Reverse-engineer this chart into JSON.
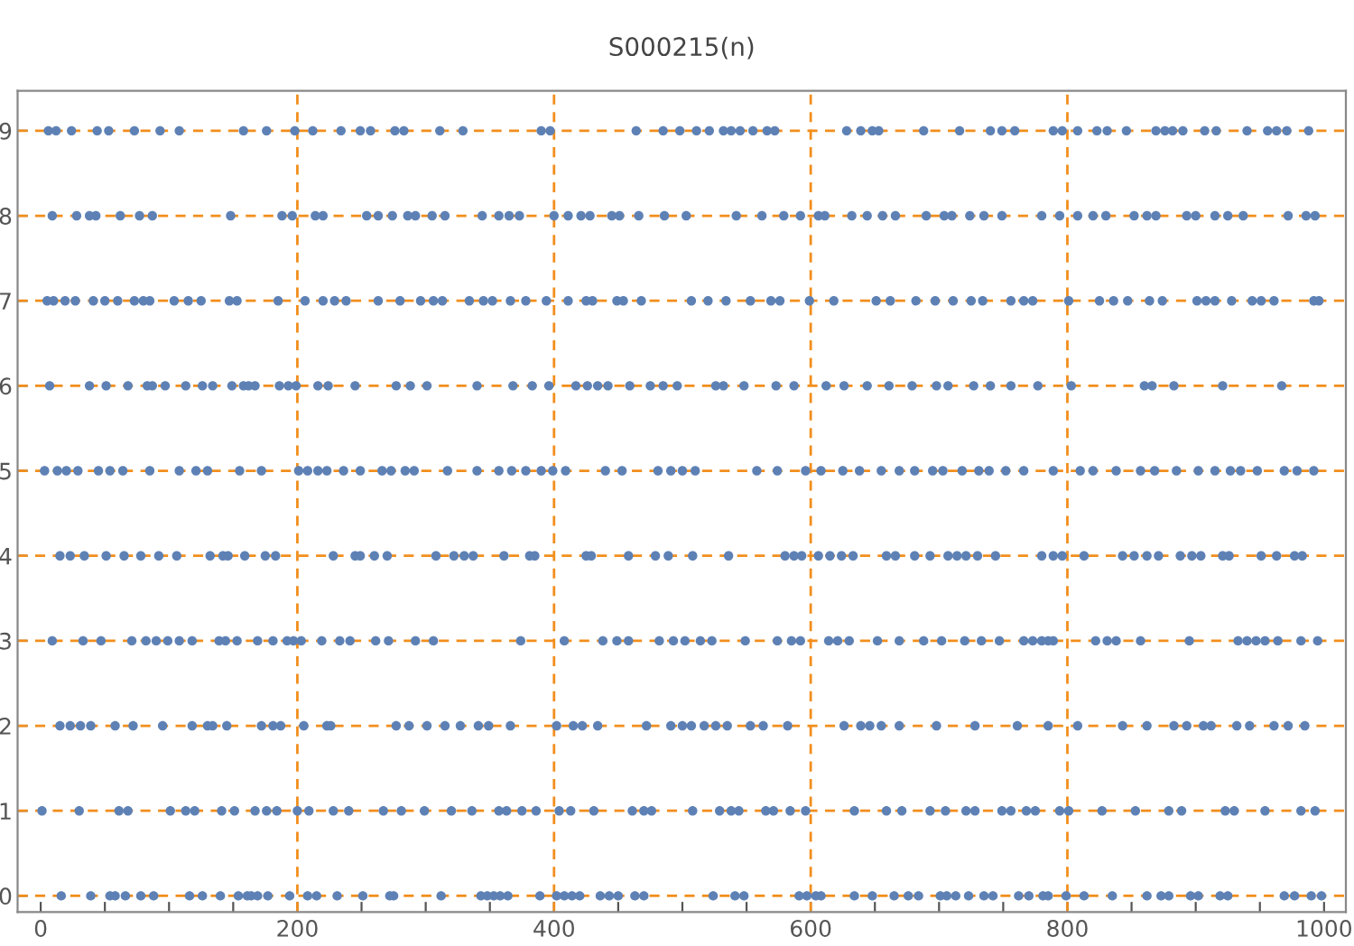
{
  "chart_data": {
    "type": "scatter",
    "title": "S000215(n)",
    "marker": "circle",
    "xlim": [
      -18,
      1017
    ],
    "ylim": [
      -0.19,
      9.47
    ],
    "xticks": [
      0,
      {
        "value": 50,
        "label": null
      },
      {
        "value": 100,
        "label": null
      },
      {
        "value": 150,
        "label": null
      },
      200,
      {
        "value": 250,
        "label": null
      },
      {
        "value": 300,
        "label": null
      },
      {
        "value": 350,
        "label": null
      },
      400,
      {
        "value": 450,
        "label": null
      },
      {
        "value": 500,
        "label": null
      },
      {
        "value": 550,
        "label": null
      },
      600,
      {
        "value": 650,
        "label": null
      },
      {
        "value": 700,
        "label": null
      },
      {
        "value": 750,
        "label": null
      },
      800,
      {
        "value": 850,
        "label": null
      },
      {
        "value": 900,
        "label": null
      },
      {
        "value": 950,
        "label": null
      },
      1000
    ],
    "yticks": [
      0,
      1,
      2,
      3,
      4,
      5,
      6,
      7,
      8,
      9
    ],
    "ref_lines": [
      {
        "axis": "y",
        "value": 0,
        "color": "#f28e1c",
        "line_style": "dashed"
      },
      {
        "axis": "y",
        "value": 1,
        "color": "#f28e1c",
        "line_style": "dashed"
      },
      {
        "axis": "y",
        "value": 2,
        "color": "#f28e1c",
        "line_style": "dashed"
      },
      {
        "axis": "y",
        "value": 3,
        "color": "#f28e1c",
        "line_style": "dashed"
      },
      {
        "axis": "y",
        "value": 4,
        "color": "#f28e1c",
        "line_style": "dashed"
      },
      {
        "axis": "y",
        "value": 5,
        "color": "#f28e1c",
        "line_style": "dashed"
      },
      {
        "axis": "y",
        "value": 6,
        "color": "#f28e1c",
        "line_style": "dashed"
      },
      {
        "axis": "y",
        "value": 7,
        "color": "#f28e1c",
        "line_style": "dashed"
      },
      {
        "axis": "y",
        "value": 8,
        "color": "#f28e1c",
        "line_style": "dashed"
      },
      {
        "axis": "y",
        "value": 9,
        "color": "#f28e1c",
        "line_style": "dashed"
      },
      {
        "axis": "x",
        "value": 200,
        "color": "#f28e1c",
        "line_style": "dashed"
      },
      {
        "axis": "x",
        "value": 400,
        "color": "#f28e1c",
        "line_style": "dashed"
      },
      {
        "axis": "x",
        "value": 600,
        "color": "#f28e1c",
        "line_style": "dashed"
      },
      {
        "axis": "x",
        "value": 800,
        "color": "#f28e1c",
        "line_style": "dashed"
      }
    ],
    "series": [
      {
        "color": "#5e81b5",
        "x": [
          16,
          39,
          54,
          58,
          66,
          78,
          88,
          116,
          126,
          140,
          154,
          161,
          164,
          169,
          177,
          194,
          208,
          215,
          231,
          251,
          272,
          275,
          312,
          343,
          348,
          353,
          358,
          364,
          389,
          402,
          408,
          414,
          420,
          436,
          443,
          450,
          463,
          470,
          524,
          541,
          548,
          591,
          597,
          604,
          608,
          634,
          648,
          665,
          676,
          684,
          701,
          706,
          713,
          723,
          735,
          742,
          762,
          770,
          781,
          785,
          799,
          813,
          835,
          862,
          873,
          879,
          896,
          902,
          919,
          925,
          969,
          977,
          990,
          998
        ],
        "values": [
          0,
          0,
          0,
          0,
          0,
          0,
          0,
          0,
          0,
          0,
          0,
          0,
          0,
          0,
          0,
          0,
          0,
          0,
          0,
          0,
          0,
          0,
          0,
          0,
          0,
          0,
          0,
          0,
          0,
          0,
          0,
          0,
          0,
          0,
          0,
          0,
          0,
          0,
          0,
          0,
          0,
          0,
          0,
          0,
          0,
          0,
          0,
          0,
          0,
          0,
          0,
          0,
          0,
          0,
          0,
          0,
          0,
          0,
          0,
          0,
          0,
          0,
          0,
          0,
          0,
          0,
          0,
          0,
          0,
          0,
          0,
          0,
          0,
          0
        ]
      },
      {
        "color": "#5e81b5",
        "x": [
          1,
          30,
          61,
          68,
          101,
          113,
          120,
          141,
          151,
          167,
          176,
          184,
          200,
          209,
          228,
          240,
          267,
          281,
          299,
          320,
          336,
          357,
          363,
          375,
          386,
          404,
          413,
          431,
          461,
          470,
          476,
          508,
          529,
          538,
          544,
          565,
          571,
          584,
          596,
          634,
          659,
          671,
          693,
          705,
          721,
          728,
          749,
          756,
          768,
          775,
          794,
          801,
          827,
          853,
          879,
          889,
          923,
          930,
          954,
          982,
          993
        ],
        "values": [
          1,
          1,
          1,
          1,
          1,
          1,
          1,
          1,
          1,
          1,
          1,
          1,
          1,
          1,
          1,
          1,
          1,
          1,
          1,
          1,
          1,
          1,
          1,
          1,
          1,
          1,
          1,
          1,
          1,
          1,
          1,
          1,
          1,
          1,
          1,
          1,
          1,
          1,
          1,
          1,
          1,
          1,
          1,
          1,
          1,
          1,
          1,
          1,
          1,
          1,
          1,
          1,
          1,
          1,
          1,
          1,
          1,
          1,
          1,
          1,
          1
        ]
      },
      {
        "color": "#5e81b5",
        "x": [
          15,
          23,
          31,
          39,
          58,
          72,
          95,
          118,
          130,
          134,
          145,
          172,
          181,
          187,
          205,
          223,
          226,
          277,
          287,
          301,
          315,
          327,
          341,
          349,
          366,
          402,
          415,
          422,
          434,
          472,
          491,
          500,
          507,
          517,
          526,
          535,
          553,
          563,
          582,
          626,
          639,
          646,
          655,
          669,
          698,
          728,
          761,
          785,
          808,
          843,
          862,
          883,
          893,
          906,
          912,
          932,
          942,
          961,
          972,
          985
        ],
        "values": [
          2,
          2,
          2,
          2,
          2,
          2,
          2,
          2,
          2,
          2,
          2,
          2,
          2,
          2,
          2,
          2,
          2,
          2,
          2,
          2,
          2,
          2,
          2,
          2,
          2,
          2,
          2,
          2,
          2,
          2,
          2,
          2,
          2,
          2,
          2,
          2,
          2,
          2,
          2,
          2,
          2,
          2,
          2,
          2,
          2,
          2,
          2,
          2,
          2,
          2,
          2,
          2,
          2,
          2,
          2,
          2,
          2,
          2,
          2,
          2
        ]
      },
      {
        "color": "#5e81b5",
        "x": [
          9,
          33,
          47,
          71,
          82,
          90,
          99,
          108,
          118,
          139,
          144,
          153,
          169,
          181,
          192,
          197,
          203,
          219,
          233,
          241,
          261,
          271,
          292,
          306,
          374,
          408,
          438,
          449,
          458,
          482,
          493,
          502,
          514,
          523,
          549,
          574,
          585,
          592,
          614,
          621,
          630,
          652,
          669,
          688,
          702,
          720,
          733,
          747,
          766,
          773,
          780,
          785,
          789,
          822,
          831,
          838,
          857,
          895,
          933,
          940,
          947,
          954,
          964,
          982,
          995
        ],
        "values": [
          3,
          3,
          3,
          3,
          3,
          3,
          3,
          3,
          3,
          3,
          3,
          3,
          3,
          3,
          3,
          3,
          3,
          3,
          3,
          3,
          3,
          3,
          3,
          3,
          3,
          3,
          3,
          3,
          3,
          3,
          3,
          3,
          3,
          3,
          3,
          3,
          3,
          3,
          3,
          3,
          3,
          3,
          3,
          3,
          3,
          3,
          3,
          3,
          3,
          3,
          3,
          3,
          3,
          3,
          3,
          3,
          3,
          3,
          3,
          3,
          3,
          3,
          3,
          3,
          3
        ]
      },
      {
        "color": "#5e81b5",
        "x": [
          15,
          23,
          34,
          51,
          65,
          78,
          92,
          106,
          132,
          142,
          146,
          159,
          175,
          183,
          228,
          245,
          249,
          260,
          270,
          308,
          322,
          330,
          337,
          361,
          381,
          385,
          425,
          429,
          458,
          479,
          489,
          508,
          536,
          580,
          587,
          593,
          606,
          615,
          624,
          633,
          659,
          666,
          681,
          693,
          707,
          714,
          721,
          730,
          744,
          780,
          789,
          796,
          813,
          843,
          852,
          862,
          871,
          888,
          897,
          904,
          921,
          926,
          951,
          963,
          977,
          983
        ],
        "values": [
          4,
          4,
          4,
          4,
          4,
          4,
          4,
          4,
          4,
          4,
          4,
          4,
          4,
          4,
          4,
          4,
          4,
          4,
          4,
          4,
          4,
          4,
          4,
          4,
          4,
          4,
          4,
          4,
          4,
          4,
          4,
          4,
          4,
          4,
          4,
          4,
          4,
          4,
          4,
          4,
          4,
          4,
          4,
          4,
          4,
          4,
          4,
          4,
          4,
          4,
          4,
          4,
          4,
          4,
          4,
          4,
          4,
          4,
          4,
          4,
          4,
          4,
          4,
          4,
          4,
          4
        ]
      },
      {
        "color": "#5e81b5",
        "x": [
          3,
          13,
          20,
          29,
          45,
          54,
          64,
          85,
          108,
          121,
          130,
          155,
          172,
          201,
          208,
          216,
          223,
          236,
          249,
          266,
          273,
          284,
          291,
          317,
          340,
          357,
          367,
          378,
          390,
          399,
          409,
          440,
          453,
          481,
          491,
          500,
          510,
          558,
          574,
          596,
          608,
          625,
          638,
          655,
          669,
          681,
          695,
          703,
          718,
          731,
          739,
          752,
          766,
          789,
          810,
          820,
          838,
          857,
          868,
          885,
          902,
          915,
          927,
          935,
          948,
          969,
          979,
          992
        ],
        "values": [
          5,
          5,
          5,
          5,
          5,
          5,
          5,
          5,
          5,
          5,
          5,
          5,
          5,
          5,
          5,
          5,
          5,
          5,
          5,
          5,
          5,
          5,
          5,
          5,
          5,
          5,
          5,
          5,
          5,
          5,
          5,
          5,
          5,
          5,
          5,
          5,
          5,
          5,
          5,
          5,
          5,
          5,
          5,
          5,
          5,
          5,
          5,
          5,
          5,
          5,
          5,
          5,
          5,
          5,
          5,
          5,
          5,
          5,
          5,
          5,
          5,
          5,
          5,
          5,
          5,
          5,
          5,
          5
        ]
      },
      {
        "color": "#5e81b5",
        "x": [
          7,
          38,
          51,
          68,
          83,
          87,
          97,
          113,
          126,
          134,
          149,
          158,
          162,
          167,
          186,
          193,
          199,
          216,
          224,
          245,
          277,
          288,
          301,
          340,
          368,
          383,
          396,
          417,
          426,
          434,
          442,
          459,
          475,
          485,
          496,
          526,
          532,
          548,
          573,
          587,
          612,
          626,
          644,
          661,
          679,
          698,
          707,
          727,
          740,
          756,
          777,
          803,
          860,
          866,
          883,
          921,
          967
        ],
        "values": [
          6,
          6,
          6,
          6,
          6,
          6,
          6,
          6,
          6,
          6,
          6,
          6,
          6,
          6,
          6,
          6,
          6,
          6,
          6,
          6,
          6,
          6,
          6,
          6,
          6,
          6,
          6,
          6,
          6,
          6,
          6,
          6,
          6,
          6,
          6,
          6,
          6,
          6,
          6,
          6,
          6,
          6,
          6,
          6,
          6,
          6,
          6,
          6,
          6,
          6,
          6,
          6,
          6,
          6,
          6,
          6,
          6
        ]
      },
      {
        "color": "#5e81b5",
        "x": [
          5,
          10,
          19,
          27,
          41,
          50,
          60,
          73,
          80,
          85,
          104,
          115,
          125,
          147,
          153,
          185,
          206,
          220,
          229,
          238,
          263,
          280,
          296,
          306,
          313,
          334,
          345,
          352,
          366,
          378,
          394,
          411,
          425,
          430,
          449,
          454,
          468,
          507,
          520,
          534,
          553,
          569,
          576,
          599,
          618,
          651,
          662,
          682,
          697,
          711,
          725,
          734,
          756,
          766,
          773,
          801,
          825,
          836,
          847,
          864,
          874,
          901,
          908,
          915,
          928,
          944,
          951,
          961,
          992,
          996
        ],
        "values": [
          7,
          7,
          7,
          7,
          7,
          7,
          7,
          7,
          7,
          7,
          7,
          7,
          7,
          7,
          7,
          7,
          7,
          7,
          7,
          7,
          7,
          7,
          7,
          7,
          7,
          7,
          7,
          7,
          7,
          7,
          7,
          7,
          7,
          7,
          7,
          7,
          7,
          7,
          7,
          7,
          7,
          7,
          7,
          7,
          7,
          7,
          7,
          7,
          7,
          7,
          7,
          7,
          7,
          7,
          7,
          7,
          7,
          7,
          7,
          7,
          7,
          7,
          7,
          7,
          7,
          7,
          7,
          7,
          7,
          7
        ]
      },
      {
        "color": "#5e81b5",
        "x": [
          9,
          28,
          38,
          43,
          62,
          77,
          87,
          148,
          188,
          196,
          214,
          220,
          254,
          263,
          274,
          286,
          292,
          305,
          315,
          344,
          357,
          365,
          373,
          400,
          411,
          421,
          428,
          445,
          451,
          466,
          486,
          503,
          542,
          562,
          579,
          592,
          606,
          611,
          632,
          644,
          656,
          666,
          690,
          704,
          710,
          724,
          735,
          749,
          780,
          794,
          808,
          820,
          830,
          852,
          862,
          869,
          893,
          900,
          915,
          925,
          937,
          972,
          986,
          993
        ],
        "values": [
          8,
          8,
          8,
          8,
          8,
          8,
          8,
          8,
          8,
          8,
          8,
          8,
          8,
          8,
          8,
          8,
          8,
          8,
          8,
          8,
          8,
          8,
          8,
          8,
          8,
          8,
          8,
          8,
          8,
          8,
          8,
          8,
          8,
          8,
          8,
          8,
          8,
          8,
          8,
          8,
          8,
          8,
          8,
          8,
          8,
          8,
          8,
          8,
          8,
          8,
          8,
          8,
          8,
          8,
          8,
          8,
          8,
          8,
          8,
          8,
          8,
          8,
          8,
          8
        ]
      },
      {
        "color": "#5e81b5",
        "x": [
          6,
          12,
          24,
          44,
          53,
          73,
          93,
          108,
          158,
          176,
          198,
          212,
          234,
          249,
          257,
          276,
          283,
          311,
          329,
          390,
          397,
          464,
          485,
          498,
          511,
          521,
          532,
          538,
          545,
          555,
          566,
          572,
          628,
          639,
          648,
          653,
          688,
          716,
          740,
          749,
          759,
          789,
          796,
          808,
          823,
          831,
          846,
          869,
          876,
          882,
          890,
          907,
          916,
          940,
          956,
          963,
          971,
          988
        ],
        "values": [
          9,
          9,
          9,
          9,
          9,
          9,
          9,
          9,
          9,
          9,
          9,
          9,
          9,
          9,
          9,
          9,
          9,
          9,
          9,
          9,
          9,
          9,
          9,
          9,
          9,
          9,
          9,
          9,
          9,
          9,
          9,
          9,
          9,
          9,
          9,
          9,
          9,
          9,
          9,
          9,
          9,
          9,
          9,
          9,
          9,
          9,
          9,
          9,
          9,
          9,
          9,
          9,
          9,
          9,
          9,
          9,
          9,
          9
        ]
      }
    ]
  }
}
